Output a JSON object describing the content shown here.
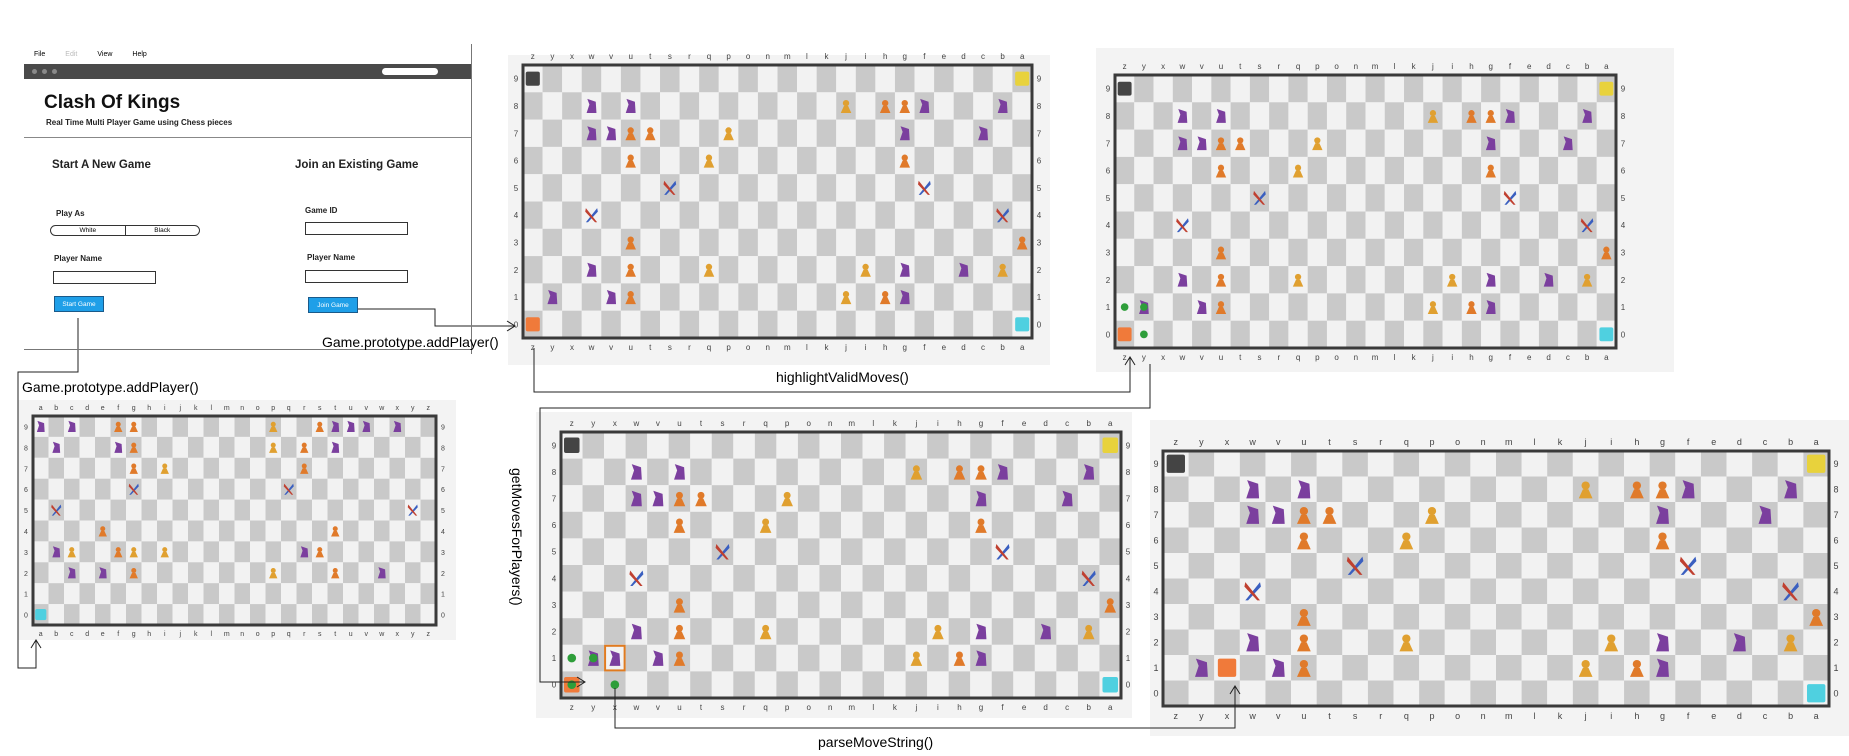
{
  "mockup": {
    "menu": [
      "File",
      "Edit",
      "View",
      "Help"
    ],
    "title": "Clash Of Kings",
    "subtitle": "Real Time Multi Player Game using Chess pieces",
    "new_game": {
      "heading": "Start A New Game",
      "play_as_label": "Play As",
      "play_as_options": [
        "White",
        "Black"
      ],
      "player_name_label": "Player Name",
      "button": "Start Game"
    },
    "join_game": {
      "heading": "Join an Existing Game",
      "game_id_label": "Game ID",
      "player_name_label": "Player Name",
      "button": "Join Game"
    }
  },
  "labels": {
    "add_player_top": "Game.prototype.addPlayer()",
    "add_player_left": "Game.prototype.addPlayer()",
    "highlight_valid_moves": "highlightValidMoves()",
    "get_moves_for_players": "getMovesForPlayers()",
    "parse_move_string": "parseMoveString()"
  },
  "colors": {
    "border": "#3a3a3a",
    "light_square": "#f2f2f2",
    "dark_square": "#c9c9c9",
    "button": "#1f9fe8",
    "highlight_dot": "#2e9e3a",
    "selection": "#e07b20"
  },
  "board_axes": {
    "columns_reversed": [
      "z",
      "y",
      "x",
      "w",
      "v",
      "u",
      "t",
      "s",
      "r",
      "q",
      "p",
      "o",
      "n",
      "m",
      "l",
      "k",
      "j",
      "i",
      "h",
      "g",
      "f",
      "e",
      "d",
      "c",
      "b",
      "a"
    ],
    "columns_forward": [
      "a",
      "b",
      "c",
      "d",
      "e",
      "f",
      "g",
      "h",
      "i",
      "j",
      "k",
      "l",
      "m",
      "n",
      "o",
      "p",
      "q",
      "r",
      "s",
      "t",
      "u",
      "v",
      "w",
      "x",
      "y",
      "z"
    ],
    "rows": [
      "9",
      "8",
      "7",
      "6",
      "5",
      "4",
      "3",
      "2",
      "1",
      "0"
    ]
  },
  "pieces_main": [
    {
      "sq": "z9",
      "kind": "king-black"
    },
    {
      "sq": "a9",
      "kind": "king-yellow"
    },
    {
      "sq": "z0",
      "kind": "king-orange"
    },
    {
      "sq": "a0",
      "kind": "king-cyan"
    },
    {
      "sq": "w8",
      "kind": "knight"
    },
    {
      "sq": "u8",
      "kind": "knight"
    },
    {
      "sq": "j8",
      "kind": "pawn"
    },
    {
      "sq": "h8",
      "kind": "bishop"
    },
    {
      "sq": "g8",
      "kind": "bishop"
    },
    {
      "sq": "f8",
      "kind": "knight"
    },
    {
      "sq": "b8",
      "kind": "knight"
    },
    {
      "sq": "w7",
      "kind": "knight"
    },
    {
      "sq": "v7",
      "kind": "knight"
    },
    {
      "sq": "u7",
      "kind": "bishop"
    },
    {
      "sq": "t7",
      "kind": "bishop"
    },
    {
      "sq": "p7",
      "kind": "pawn"
    },
    {
      "sq": "g7",
      "kind": "knight"
    },
    {
      "sq": "c7",
      "kind": "knight"
    },
    {
      "sq": "u6",
      "kind": "bishop"
    },
    {
      "sq": "q6",
      "kind": "pawn"
    },
    {
      "sq": "g6",
      "kind": "bishop"
    },
    {
      "sq": "s5",
      "kind": "rook"
    },
    {
      "sq": "f5",
      "kind": "rook"
    },
    {
      "sq": "w4",
      "kind": "rook"
    },
    {
      "sq": "b4",
      "kind": "rook"
    },
    {
      "sq": "u3",
      "kind": "bishop"
    },
    {
      "sq": "a3",
      "kind": "bishop"
    },
    {
      "sq": "w2",
      "kind": "knight"
    },
    {
      "sq": "u2",
      "kind": "bishop"
    },
    {
      "sq": "q2",
      "kind": "pawn"
    },
    {
      "sq": "i2",
      "kind": "pawn"
    },
    {
      "sq": "g2",
      "kind": "knight"
    },
    {
      "sq": "d2",
      "kind": "knight"
    },
    {
      "sq": "b2",
      "kind": "pawn"
    },
    {
      "sq": "y1",
      "kind": "knight"
    },
    {
      "sq": "v1",
      "kind": "knight"
    },
    {
      "sq": "u1",
      "kind": "bishop"
    },
    {
      "sq": "j1",
      "kind": "pawn"
    },
    {
      "sq": "h1",
      "kind": "bishop"
    },
    {
      "sq": "g1",
      "kind": "knight"
    }
  ],
  "pieces_bl": [
    {
      "sq": "a0",
      "kind": "king-cyan"
    },
    {
      "sq": "a9",
      "kind": "knight"
    },
    {
      "sq": "c9",
      "kind": "knight"
    },
    {
      "sq": "f9",
      "kind": "bishop"
    },
    {
      "sq": "g9",
      "kind": "bishop"
    },
    {
      "sq": "p9",
      "kind": "pawn"
    },
    {
      "sq": "s9",
      "kind": "bishop"
    },
    {
      "sq": "t9",
      "kind": "knight"
    },
    {
      "sq": "u9",
      "kind": "knight"
    },
    {
      "sq": "v9",
      "kind": "knight"
    },
    {
      "sq": "x9",
      "kind": "knight"
    },
    {
      "sq": "b8",
      "kind": "knight"
    },
    {
      "sq": "f8",
      "kind": "knight"
    },
    {
      "sq": "g8",
      "kind": "bishop"
    },
    {
      "sq": "p8",
      "kind": "pawn"
    },
    {
      "sq": "r8",
      "kind": "bishop"
    },
    {
      "sq": "t8",
      "kind": "knight"
    },
    {
      "sq": "g7",
      "kind": "bishop"
    },
    {
      "sq": "i7",
      "kind": "pawn"
    },
    {
      "sq": "r7",
      "kind": "bishop"
    },
    {
      "sq": "g6",
      "kind": "rook"
    },
    {
      "sq": "q6",
      "kind": "rook"
    },
    {
      "sq": "b5",
      "kind": "rook"
    },
    {
      "sq": "y5",
      "kind": "rook"
    },
    {
      "sq": "e4",
      "kind": "bishop"
    },
    {
      "sq": "t4",
      "kind": "bishop"
    },
    {
      "sq": "b3",
      "kind": "knight"
    },
    {
      "sq": "c3",
      "kind": "pawn"
    },
    {
      "sq": "f3",
      "kind": "bishop"
    },
    {
      "sq": "g3",
      "kind": "pawn"
    },
    {
      "sq": "i3",
      "kind": "pawn"
    },
    {
      "sq": "r3",
      "kind": "knight"
    },
    {
      "sq": "s3",
      "kind": "bishop"
    },
    {
      "sq": "c2",
      "kind": "knight"
    },
    {
      "sq": "e2",
      "kind": "knight"
    },
    {
      "sq": "g2",
      "kind": "bishop"
    },
    {
      "sq": "p2",
      "kind": "pawn"
    },
    {
      "sq": "t2",
      "kind": "bishop"
    },
    {
      "sq": "w2",
      "kind": "knight"
    }
  ],
  "bottom_right_moves": [
    {
      "sq": "x1",
      "kind": "king-orange"
    }
  ]
}
